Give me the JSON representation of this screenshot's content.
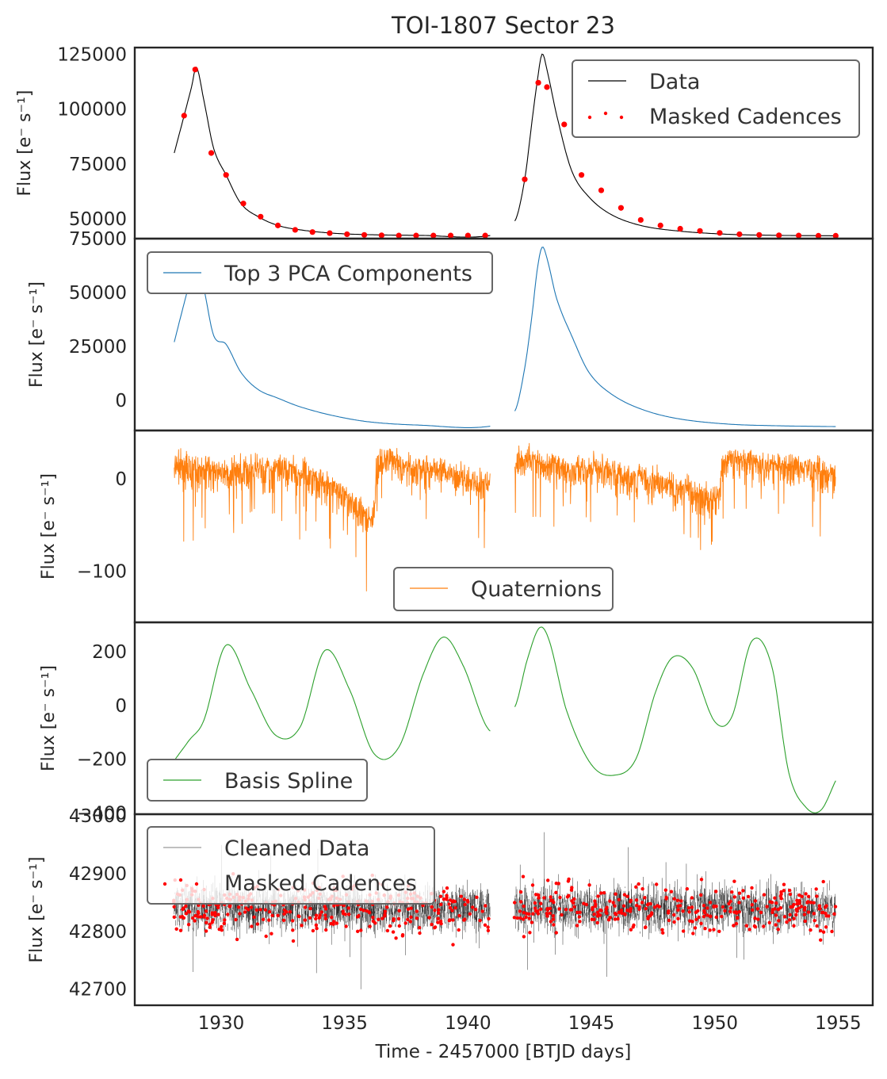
{
  "chart_data": {
    "type": "line",
    "title": "TOI-1807 Sector 23",
    "xlabel": "Time - 2457000 [BTJD days]",
    "xlim": [
      1926.5,
      1956.4
    ],
    "xticks": [
      1930,
      1935,
      1940,
      1945,
      1950,
      1955
    ],
    "data_segments": [
      [
        1928.1,
        1940.9
      ],
      [
        1941.9,
        1954.9
      ]
    ],
    "colors": {
      "data": "#000000",
      "masked": "#ff0000",
      "pca": "#1f77b4",
      "quat": "#ff7f0e",
      "spline": "#2ca02c",
      "axes": "#262626",
      "legend_edge": "#666666"
    },
    "panels": [
      {
        "id": "data",
        "ylabel": "Flux [e⁻ s⁻¹]",
        "ylim": [
          41000,
          128000
        ],
        "yticks": [
          50000,
          75000,
          100000,
          125000
        ],
        "ytick_labels": [
          "50000",
          "75000",
          "100000",
          "125000"
        ],
        "legend_loc": "upper right",
        "series": [
          {
            "name": "Data",
            "kind": "line",
            "color": "#000000",
            "x": [
              1928.1,
              1928.5,
              1928.8,
              1929.0,
              1929.3,
              1929.7,
              1930.2,
              1930.8,
              1931.5,
              1932.3,
              1933.2,
              1934.5,
              1936.0,
              1938.0,
              1940.9,
              1941.9,
              1942.3,
              1942.6,
              1942.8,
              1943.0,
              1943.2,
              1943.6,
              1944.2,
              1944.9,
              1945.8,
              1947.0,
              1948.5,
              1950.5,
              1952.5,
              1954.9
            ],
            "y": [
              80000,
              97000,
              110000,
              119000,
              104000,
              82000,
              70000,
              57000,
              51000,
              47000,
              45000,
              43500,
              42800,
              42500,
              42400,
              49000,
              68000,
              95000,
              112000,
              125000,
              118000,
              97000,
              72000,
              60000,
              52000,
              47000,
              44500,
              43000,
              42500,
              42300
            ]
          },
          {
            "name": "Masked Cadences",
            "kind": "points",
            "color": "#ff0000",
            "x": [
              1928.5,
              1928.95,
              1929.6,
              1930.2,
              1930.9,
              1931.6,
              1932.3,
              1933.0,
              1933.7,
              1934.4,
              1935.1,
              1935.8,
              1936.5,
              1937.2,
              1937.9,
              1938.6,
              1939.3,
              1940.0,
              1940.7,
              1942.3,
              1942.85,
              1943.2,
              1943.9,
              1944.6,
              1945.4,
              1946.2,
              1947.0,
              1947.8,
              1948.6,
              1949.4,
              1950.2,
              1951.0,
              1951.8,
              1952.6,
              1953.4,
              1954.2,
              1954.9
            ],
            "y": [
              97000,
              118000,
              80000,
              70000,
              57000,
              51000,
              47000,
              45000,
              44000,
              43500,
              43000,
              42700,
              42500,
              42400,
              42400,
              42400,
              42400,
              42400,
              42400,
              68000,
              112000,
              110000,
              93000,
              70000,
              63000,
              55000,
              49500,
              47000,
              45500,
              44500,
              43600,
              43000,
              42700,
              42500,
              42400,
              42300,
              42300
            ]
          }
        ]
      },
      {
        "id": "pca",
        "ylabel": "Flux [e⁻ s⁻¹]",
        "ylim": [
          -14000,
          75000
        ],
        "yticks": [
          0,
          25000,
          50000,
          75000
        ],
        "ytick_labels": [
          "0",
          "25000",
          "50000",
          "75000"
        ],
        "legend_loc": "upper left",
        "series": [
          {
            "name": "Top 3 PCA Components",
            "kind": "line",
            "color": "#1f77b4",
            "x": [
              1928.1,
              1928.5,
              1928.8,
              1929.0,
              1929.3,
              1929.7,
              1930.2,
              1930.8,
              1931.5,
              1932.3,
              1933.2,
              1934.5,
              1936.0,
              1938.0,
              1940.9,
              1941.9,
              1942.3,
              1942.6,
              1942.8,
              1943.0,
              1943.2,
              1943.6,
              1944.2,
              1944.9,
              1945.8,
              1947.0,
              1948.5,
              1950.5,
              1952.5,
              1954.9
            ],
            "y": [
              27000,
              45000,
              58000,
              66000,
              52000,
              30000,
              26000,
              13000,
              5000,
              1000,
              -3000,
              -7000,
              -10000,
              -11500,
              -12000,
              -5000,
              15000,
              40000,
              60000,
              71000,
              66000,
              47000,
              30000,
              13000,
              3000,
              -4000,
              -8500,
              -11000,
              -11800,
              -12200
            ]
          }
        ]
      },
      {
        "id": "quat",
        "ylabel": "Flux [e⁻ s⁻¹]",
        "ylim": [
          -155,
          52
        ],
        "yticks": [
          -100,
          0
        ],
        "ytick_labels": [
          "−100",
          "0"
        ],
        "legend_loc": "lower center",
        "series": [
          {
            "name": "Quaternions",
            "kind": "noisy-line",
            "color": "#ff7f0e",
            "x": [
              1928.1,
              1929.5,
              1931.0,
              1933.0,
              1934.5,
              1935.5,
              1936.2,
              1936.3,
              1937.5,
              1939.0,
              1940.9,
              1941.9,
              1943.0,
              1945.0,
              1947.0,
              1949.0,
              1950.2,
              1950.3,
              1952.0,
              1954.0,
              1954.9
            ],
            "y": [
              15,
              8,
              10,
              8,
              -10,
              -30,
              -38,
              15,
              12,
              8,
              -5,
              20,
              15,
              10,
              0,
              -12,
              -20,
              17,
              15,
              10,
              3
            ],
            "spread": 28
          }
        ]
      },
      {
        "id": "spline",
        "ylabel": "Flux [e⁻ s⁻¹]",
        "ylim": [
          -405,
          310
        ],
        "yticks": [
          -400,
          -200,
          0,
          200
        ],
        "ytick_labels": [
          "−400",
          "−200",
          "0",
          "200"
        ],
        "legend_loc": "lower left",
        "series": [
          {
            "name": "Basis Spline",
            "kind": "line",
            "color": "#2ca02c",
            "x": [
              1928.1,
              1928.7,
              1929.3,
              1930.2,
              1931.2,
              1932.2,
              1933.2,
              1934.2,
              1935.2,
              1936.2,
              1937.2,
              1938.2,
              1939.0,
              1939.8,
              1940.9,
              1941.9,
              1942.4,
              1942.9,
              1943.3,
              1944.0,
              1945.0,
              1945.9,
              1946.8,
              1947.6,
              1948.3,
              1949.1,
              1950.0,
              1950.7,
              1951.5,
              1952.3,
              1953.0,
              1953.7,
              1954.3,
              1954.9
            ],
            "y": [
              -205,
              -130,
              -55,
              225,
              60,
              -110,
              -80,
              205,
              60,
              -180,
              -155,
              120,
              255,
              150,
              -95,
              -5,
              170,
              290,
              240,
              -20,
              -220,
              -260,
              -200,
              50,
              180,
              140,
              -60,
              -40,
              240,
              150,
              -250,
              -380,
              -390,
              -280
            ]
          }
        ]
      },
      {
        "id": "cleaned",
        "ylabel": "Flux [e⁻ s⁻¹]",
        "ylim": [
          42672,
          43003
        ],
        "yticks": [
          42700,
          42800,
          42900,
          43000
        ],
        "ytick_labels": [
          "42700",
          "42800",
          "42900",
          "43000"
        ],
        "legend_loc": "upper left",
        "series": [
          {
            "name": "Cleaned Data",
            "kind": "noisy-line",
            "color": "#000000",
            "center": 42840,
            "spread": 55
          },
          {
            "name": "Masked Cadences",
            "kind": "points",
            "color": "#ff0000",
            "center": 42840,
            "spread": 70
          }
        ]
      }
    ]
  }
}
